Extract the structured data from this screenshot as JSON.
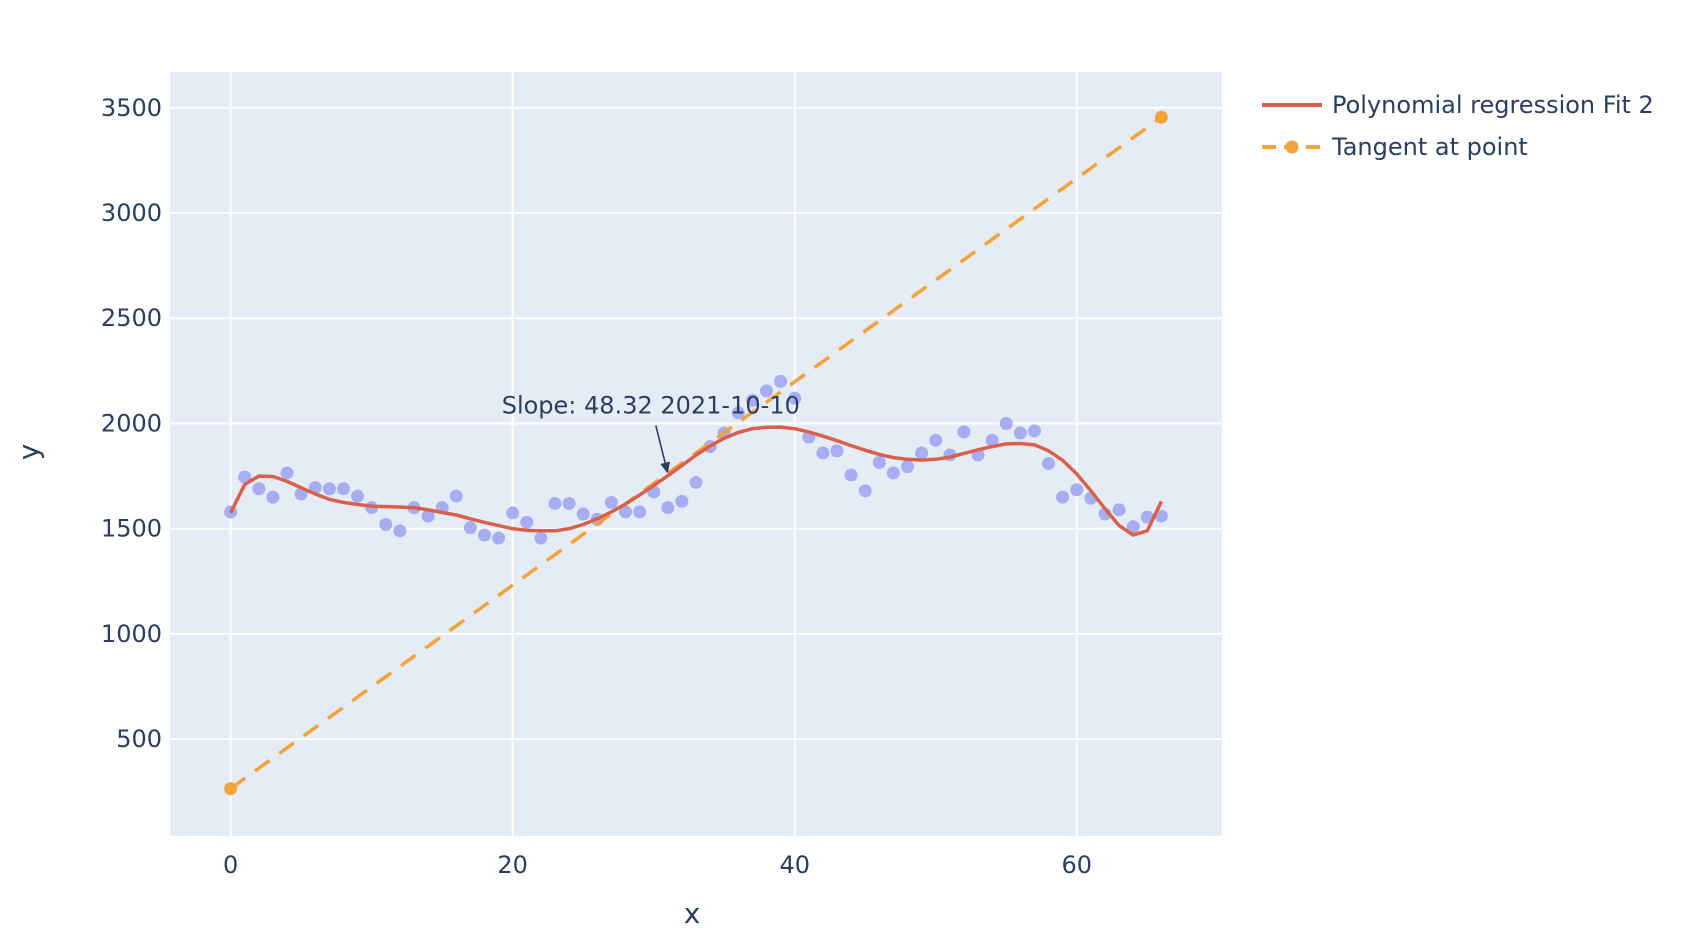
{
  "chart_data": {
    "type": "scatter",
    "title": "",
    "xlabel": "x",
    "ylabel": "y",
    "xlim": [
      -4.3,
      70.3
    ],
    "ylim": [
      40,
      3670
    ],
    "x_ticks": [
      0,
      20,
      40,
      60
    ],
    "y_ticks": [
      500,
      1000,
      1500,
      2000,
      2500,
      3000,
      3500
    ],
    "grid": true,
    "legend_position": "top-right",
    "colors": {
      "plot_background": "#e5ecf6",
      "grid": "#ffffff",
      "scatter": "#9ea6f2",
      "fit": "#d9604a",
      "tangent": "#f2a33a",
      "text": "#2a3f5f"
    },
    "series": [
      {
        "kind": "scatter",
        "x": [
          0,
          1,
          2,
          3,
          4,
          5,
          6,
          7,
          8,
          9,
          10,
          11,
          12,
          13,
          14,
          15,
          16,
          17,
          18,
          19,
          20,
          21,
          22,
          23,
          24,
          25,
          26,
          27,
          28,
          29,
          30,
          31,
          32,
          33,
          34,
          35,
          36,
          37,
          38,
          39,
          40,
          41,
          42,
          43,
          44,
          45,
          46,
          47,
          48,
          49,
          50,
          51,
          52,
          53,
          54,
          55,
          56,
          57,
          58,
          59,
          60,
          61,
          62,
          63,
          64,
          65,
          66
        ],
        "y": [
          1580,
          1745,
          1690,
          1650,
          1765,
          1665,
          1695,
          1690,
          1690,
          1655,
          1600,
          1520,
          1490,
          1600,
          1560,
          1600,
          1655,
          1505,
          1470,
          1455,
          1575,
          1530,
          1455,
          1620,
          1620,
          1570,
          1545,
          1625,
          1580,
          1580,
          1675,
          1600,
          1630,
          1720,
          1890,
          1955,
          2050,
          2110,
          2155,
          2200,
          2120,
          1935,
          1860,
          1870,
          1755,
          1680,
          1815,
          1765,
          1795,
          1860,
          1920,
          1850,
          1960,
          1850,
          1920,
          2000,
          1955,
          1965,
          1810,
          1650,
          1685,
          1645,
          1570,
          1590,
          1510,
          1555,
          1560
        ]
      },
      {
        "kind": "line",
        "name": "Polynomial regression Fit 2",
        "x": [
          0,
          1,
          2,
          3,
          4,
          5,
          6,
          7,
          8,
          9,
          10,
          11,
          12,
          13,
          14,
          15,
          16,
          17,
          18,
          19,
          20,
          21,
          22,
          23,
          24,
          25,
          26,
          27,
          28,
          29,
          30,
          31,
          32,
          33,
          34,
          35,
          36,
          37,
          38,
          39,
          40,
          41,
          42,
          43,
          44,
          45,
          46,
          47,
          48,
          49,
          50,
          51,
          52,
          53,
          54,
          55,
          56,
          57,
          58,
          59,
          60,
          61,
          62,
          63,
          64,
          65,
          66
        ],
        "y": [
          1575,
          1710,
          1750,
          1748,
          1725,
          1695,
          1665,
          1640,
          1625,
          1615,
          1607,
          1605,
          1603,
          1600,
          1590,
          1577,
          1565,
          1547,
          1530,
          1515,
          1500,
          1492,
          1490,
          1490,
          1500,
          1520,
          1547,
          1580,
          1617,
          1660,
          1705,
          1752,
          1800,
          1850,
          1893,
          1930,
          1957,
          1975,
          1982,
          1983,
          1975,
          1960,
          1940,
          1918,
          1895,
          1873,
          1853,
          1838,
          1830,
          1826,
          1830,
          1840,
          1858,
          1875,
          1890,
          1903,
          1905,
          1898,
          1870,
          1825,
          1760,
          1680,
          1595,
          1515,
          1470,
          1490,
          1630
        ]
      },
      {
        "kind": "line-dashed",
        "name": "Tangent at point",
        "x": [
          0,
          66
        ],
        "y": [
          265,
          3455
        ]
      }
    ],
    "annotations": [
      {
        "text": "Slope: 48.32  2021-10-10",
        "x": 31,
        "y": 1753
      }
    ]
  }
}
